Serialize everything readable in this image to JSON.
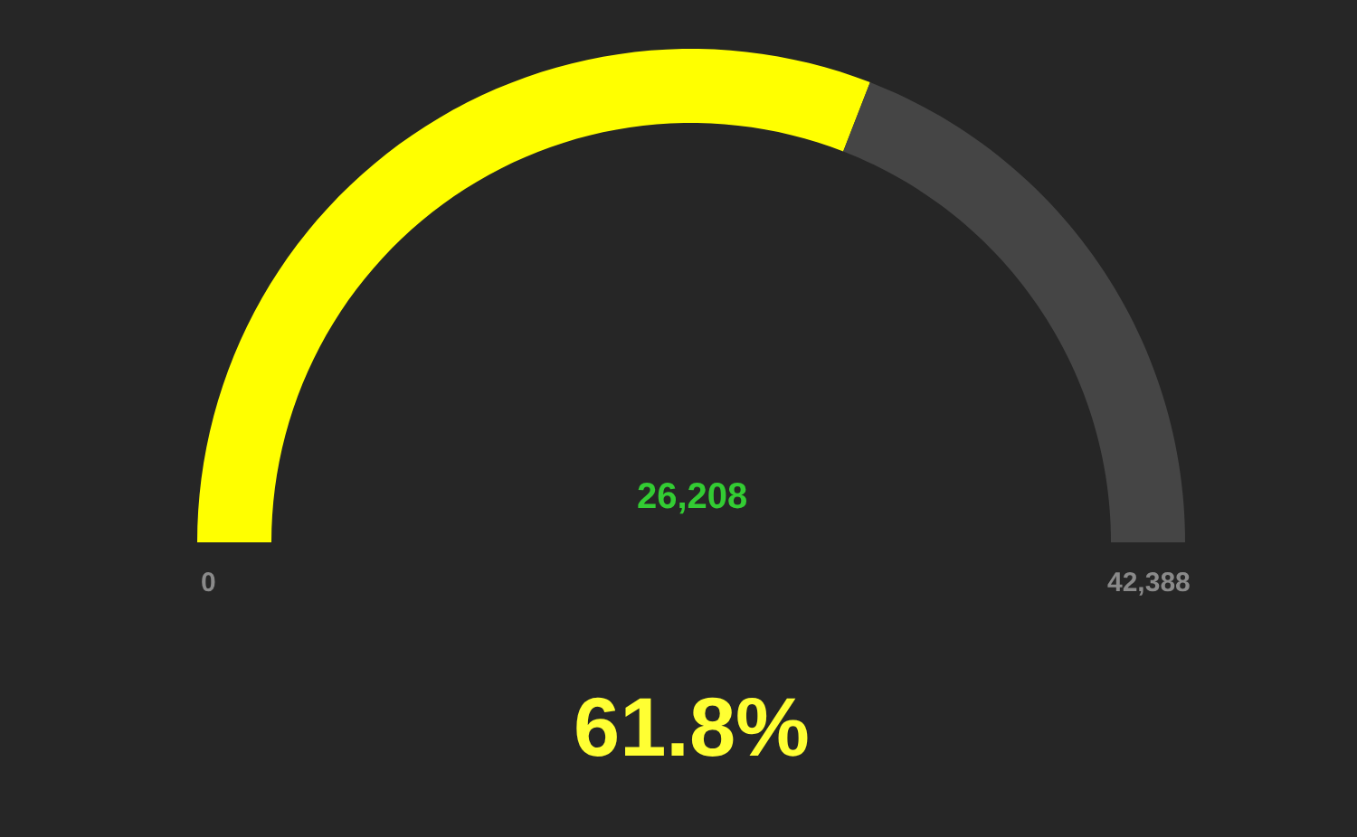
{
  "chart_data": {
    "type": "donut",
    "categories": [
      null,
      null
    ],
    "values": [
      61.8,
      38.2
    ],
    "colors": [
      "#ffff00",
      "#454545"
    ],
    "annotations": [
      "26,208",
      "0",
      "42,388",
      "61.8%"
    ]
  }
}
